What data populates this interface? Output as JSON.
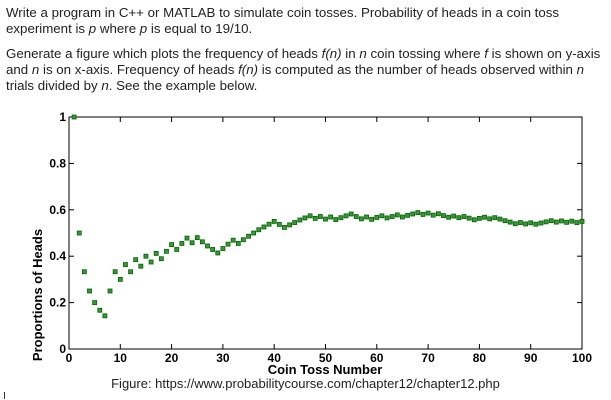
{
  "problem": {
    "paragraph1": [
      {
        "text": "Write a program in C++ or MATLAB to simulate coin tosses. Probability of heads in a coin toss experiment is ",
        "italic": false
      },
      {
        "text": "p",
        "italic": true
      },
      {
        "text": " where ",
        "italic": false
      },
      {
        "text": "p",
        "italic": true
      },
      {
        "text": " is equal to 19/10.",
        "italic": false
      }
    ],
    "paragraph2": [
      {
        "text": "Generate a figure which plots the frequency of heads ",
        "italic": false
      },
      {
        "text": "f(n)",
        "italic": true
      },
      {
        "text": " in ",
        "italic": false
      },
      {
        "text": "n",
        "italic": true
      },
      {
        "text": " coin tossing where ",
        "italic": false
      },
      {
        "text": "f",
        "italic": true
      },
      {
        "text": " is shown on y-axis and ",
        "italic": false
      },
      {
        "text": "n",
        "italic": true
      },
      {
        "text": " is on x-axis. Frequency of heads ",
        "italic": false
      },
      {
        "text": "f(n)",
        "italic": true
      },
      {
        "text": " is computed as the number of heads observed within ",
        "italic": false
      },
      {
        "text": "n",
        "italic": true
      },
      {
        "text": " trials divided by ",
        "italic": false
      },
      {
        "text": "n",
        "italic": true
      },
      {
        "text": ". See the example below.",
        "italic": false
      }
    ]
  },
  "figure": {
    "caption": "Figure: https://www.probabilitycourse.com/chapter12/chapter12.php"
  },
  "chart_data": {
    "type": "scatter",
    "xlabel": "Coin Toss Number",
    "ylabel": "Proportions of Heads",
    "xlim": [
      0,
      100
    ],
    "ylim": [
      0,
      1
    ],
    "xticks": [
      0,
      10,
      20,
      30,
      40,
      50,
      60,
      70,
      80,
      90,
      100
    ],
    "yticks": [
      0,
      0.2,
      0.4,
      0.6,
      0.8,
      1
    ],
    "ytick_labels": [
      "0",
      "0.2",
      "0.4",
      "0.6",
      "0.8",
      "1"
    ],
    "grid": false,
    "marker_color": "#2e9e2e",
    "marker_edge": "#0d5a0d",
    "x": [
      1,
      2,
      3,
      4,
      5,
      6,
      7,
      8,
      9,
      10,
      11,
      12,
      13,
      14,
      15,
      16,
      17,
      18,
      19,
      20,
      21,
      22,
      23,
      24,
      25,
      26,
      27,
      28,
      29,
      30,
      31,
      32,
      33,
      34,
      35,
      36,
      37,
      38,
      39,
      40,
      41,
      42,
      43,
      44,
      45,
      46,
      47,
      48,
      49,
      50,
      51,
      52,
      53,
      54,
      55,
      56,
      57,
      58,
      59,
      60,
      61,
      62,
      63,
      64,
      65,
      66,
      67,
      68,
      69,
      70,
      71,
      72,
      73,
      74,
      75,
      76,
      77,
      78,
      79,
      80,
      81,
      82,
      83,
      84,
      85,
      86,
      87,
      88,
      89,
      90,
      91,
      92,
      93,
      94,
      95,
      96,
      97,
      98,
      99,
      100
    ],
    "y": [
      1,
      0.5,
      0.333,
      0.25,
      0.2,
      0.167,
      0.143,
      0.25,
      0.333,
      0.3,
      0.364,
      0.333,
      0.385,
      0.357,
      0.4,
      0.375,
      0.412,
      0.389,
      0.421,
      0.45,
      0.429,
      0.455,
      0.478,
      0.458,
      0.48,
      0.462,
      0.444,
      0.429,
      0.414,
      0.433,
      0.452,
      0.469,
      0.455,
      0.471,
      0.486,
      0.5,
      0.514,
      0.526,
      0.538,
      0.55,
      0.537,
      0.524,
      0.535,
      0.545,
      0.556,
      0.565,
      0.574,
      0.563,
      0.571,
      0.56,
      0.569,
      0.558,
      0.566,
      0.574,
      0.582,
      0.571,
      0.561,
      0.569,
      0.559,
      0.567,
      0.574,
      0.565,
      0.571,
      0.578,
      0.569,
      0.576,
      0.582,
      0.588,
      0.58,
      0.586,
      0.577,
      0.583,
      0.575,
      0.568,
      0.573,
      0.566,
      0.571,
      0.564,
      0.557,
      0.563,
      0.568,
      0.561,
      0.566,
      0.56,
      0.553,
      0.547,
      0.54,
      0.545,
      0.539,
      0.544,
      0.538,
      0.543,
      0.548,
      0.553,
      0.547,
      0.552,
      0.546,
      0.551,
      0.545,
      0.55
    ]
  }
}
